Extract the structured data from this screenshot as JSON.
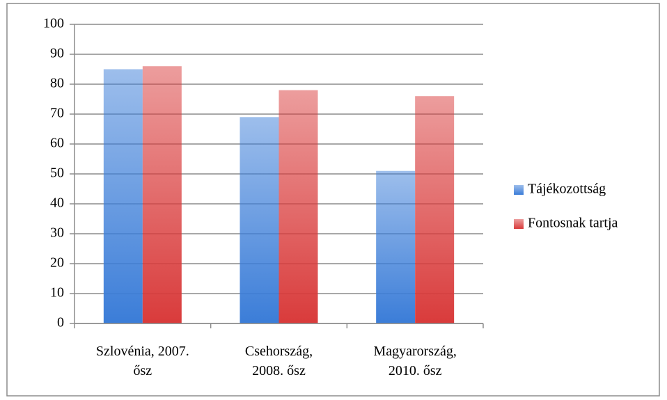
{
  "chart_data": {
    "type": "bar",
    "categories": [
      "Szlovénia, 2007.\nősz",
      "Csehország,\n2008. ősz",
      "Magyarország,\n2010. ősz"
    ],
    "series": [
      {
        "name": "Tájékozottság",
        "color": "#3b7dd8",
        "values": [
          85,
          69,
          51
        ]
      },
      {
        "name": "Fontosnak tartja",
        "color": "#d93b3b",
        "values": [
          86,
          78,
          76
        ]
      }
    ],
    "ylim": [
      0,
      100
    ],
    "yticks": [
      0,
      10,
      20,
      30,
      40,
      50,
      60,
      70,
      80,
      90,
      100
    ],
    "grid": true,
    "legend": "right"
  }
}
